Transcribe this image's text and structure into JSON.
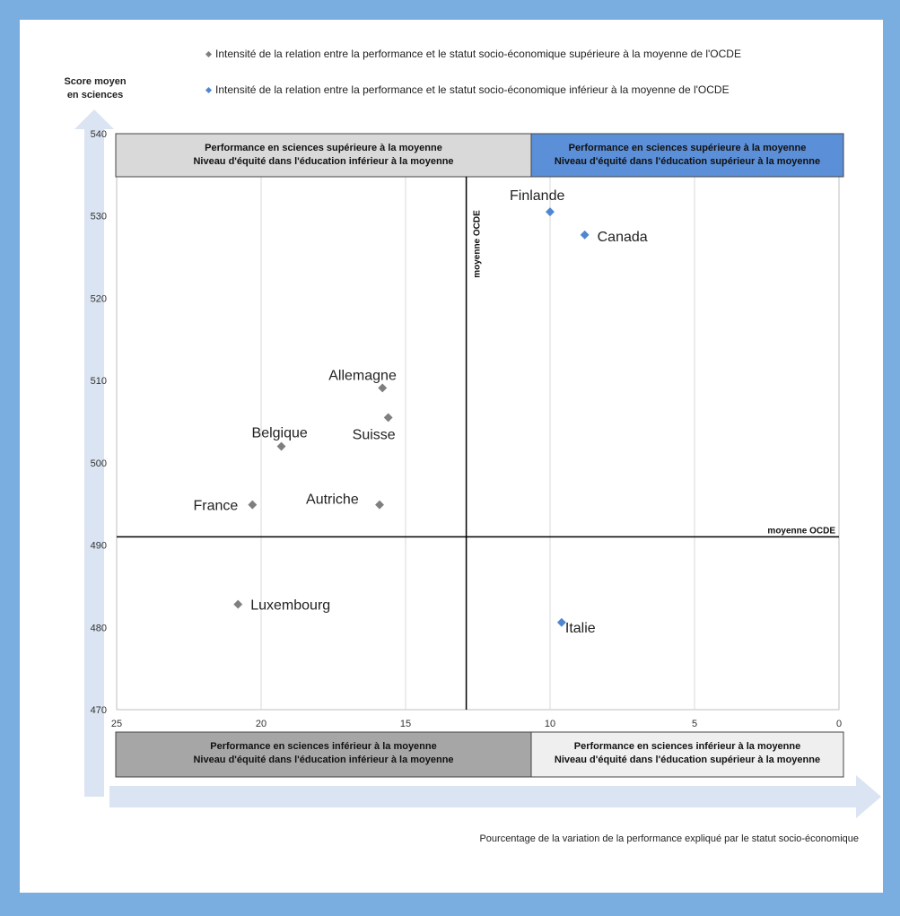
{
  "colors": {
    "frame": "#7aaee0",
    "above_oecd": "#7f7f7f",
    "below_oecd": "#4f86d0",
    "quad_top_left": "#d9d9d9",
    "quad_top_right": "#5b8fd8",
    "quad_bottom_left": "#a6a6a6",
    "quad_bottom_right": "#efefef",
    "arrow": "#dae4f2"
  },
  "chart_data": {
    "type": "scatter",
    "legend": [
      {
        "marker": "diamond",
        "color": "#7f7f7f",
        "label": "Intensité de la relation entre la performance et le statut socio-économique supérieure à la moyenne de l'OCDE"
      },
      {
        "marker": "diamond",
        "color": "#4f86d0",
        "label": "Intensité de la relation entre la performance et le statut socio-économique inférieur à la moyenne de l'OCDE"
      }
    ],
    "ylabel_line1": "Score moyen",
    "ylabel_line2": "en sciences",
    "xlabel": "Pourcentage de la variation de la performance expliqué par le statut socio-économique",
    "x_reversed": true,
    "xlim": [
      25,
      0
    ],
    "ylim": [
      470,
      540
    ],
    "xticks": [
      25,
      20,
      15,
      10,
      5,
      0
    ],
    "yticks": [
      470,
      480,
      490,
      500,
      510,
      520,
      530,
      540
    ],
    "grid": "vertical",
    "oecd_x": 12.9,
    "oecd_y": 491,
    "oecd_line_label": "moyenne OCDE",
    "points": [
      {
        "name": "Finlande",
        "x": 10.0,
        "y": 530.5,
        "group": "below"
      },
      {
        "name": "Canada",
        "x": 8.8,
        "y": 527.7,
        "group": "below"
      },
      {
        "name": "Allemagne",
        "x": 15.8,
        "y": 509.1,
        "group": "above"
      },
      {
        "name": "Suisse",
        "x": 15.6,
        "y": 505.5,
        "group": "above"
      },
      {
        "name": "Belgique",
        "x": 19.3,
        "y": 502.0,
        "group": "above"
      },
      {
        "name": "France",
        "x": 20.3,
        "y": 494.9,
        "group": "above"
      },
      {
        "name": "Autriche",
        "x": 15.9,
        "y": 494.9,
        "group": "above"
      },
      {
        "name": "Luxembourg",
        "x": 20.8,
        "y": 482.8,
        "group": "above"
      },
      {
        "name": "Italie",
        "x": 9.6,
        "y": 480.6,
        "group": "below"
      }
    ],
    "quadrants": {
      "top_left": [
        "Performance en sciences supérieure à la moyenne",
        "Niveau d'équité dans l'éducation inférieur à la moyenne"
      ],
      "top_right": [
        "Performance en sciences supérieure à la moyenne",
        "Niveau d'équité dans l'éducation supérieur à la moyenne"
      ],
      "bottom_left": [
        "Performance en sciences inférieur à la moyenne",
        "Niveau d'équité dans l'éducation inférieur à la moyenne"
      ],
      "bottom_right": [
        "Performance en sciences inférieur à la moyenne",
        "Niveau d'équité dans l'éducation supérieur à la moyenne"
      ]
    }
  }
}
